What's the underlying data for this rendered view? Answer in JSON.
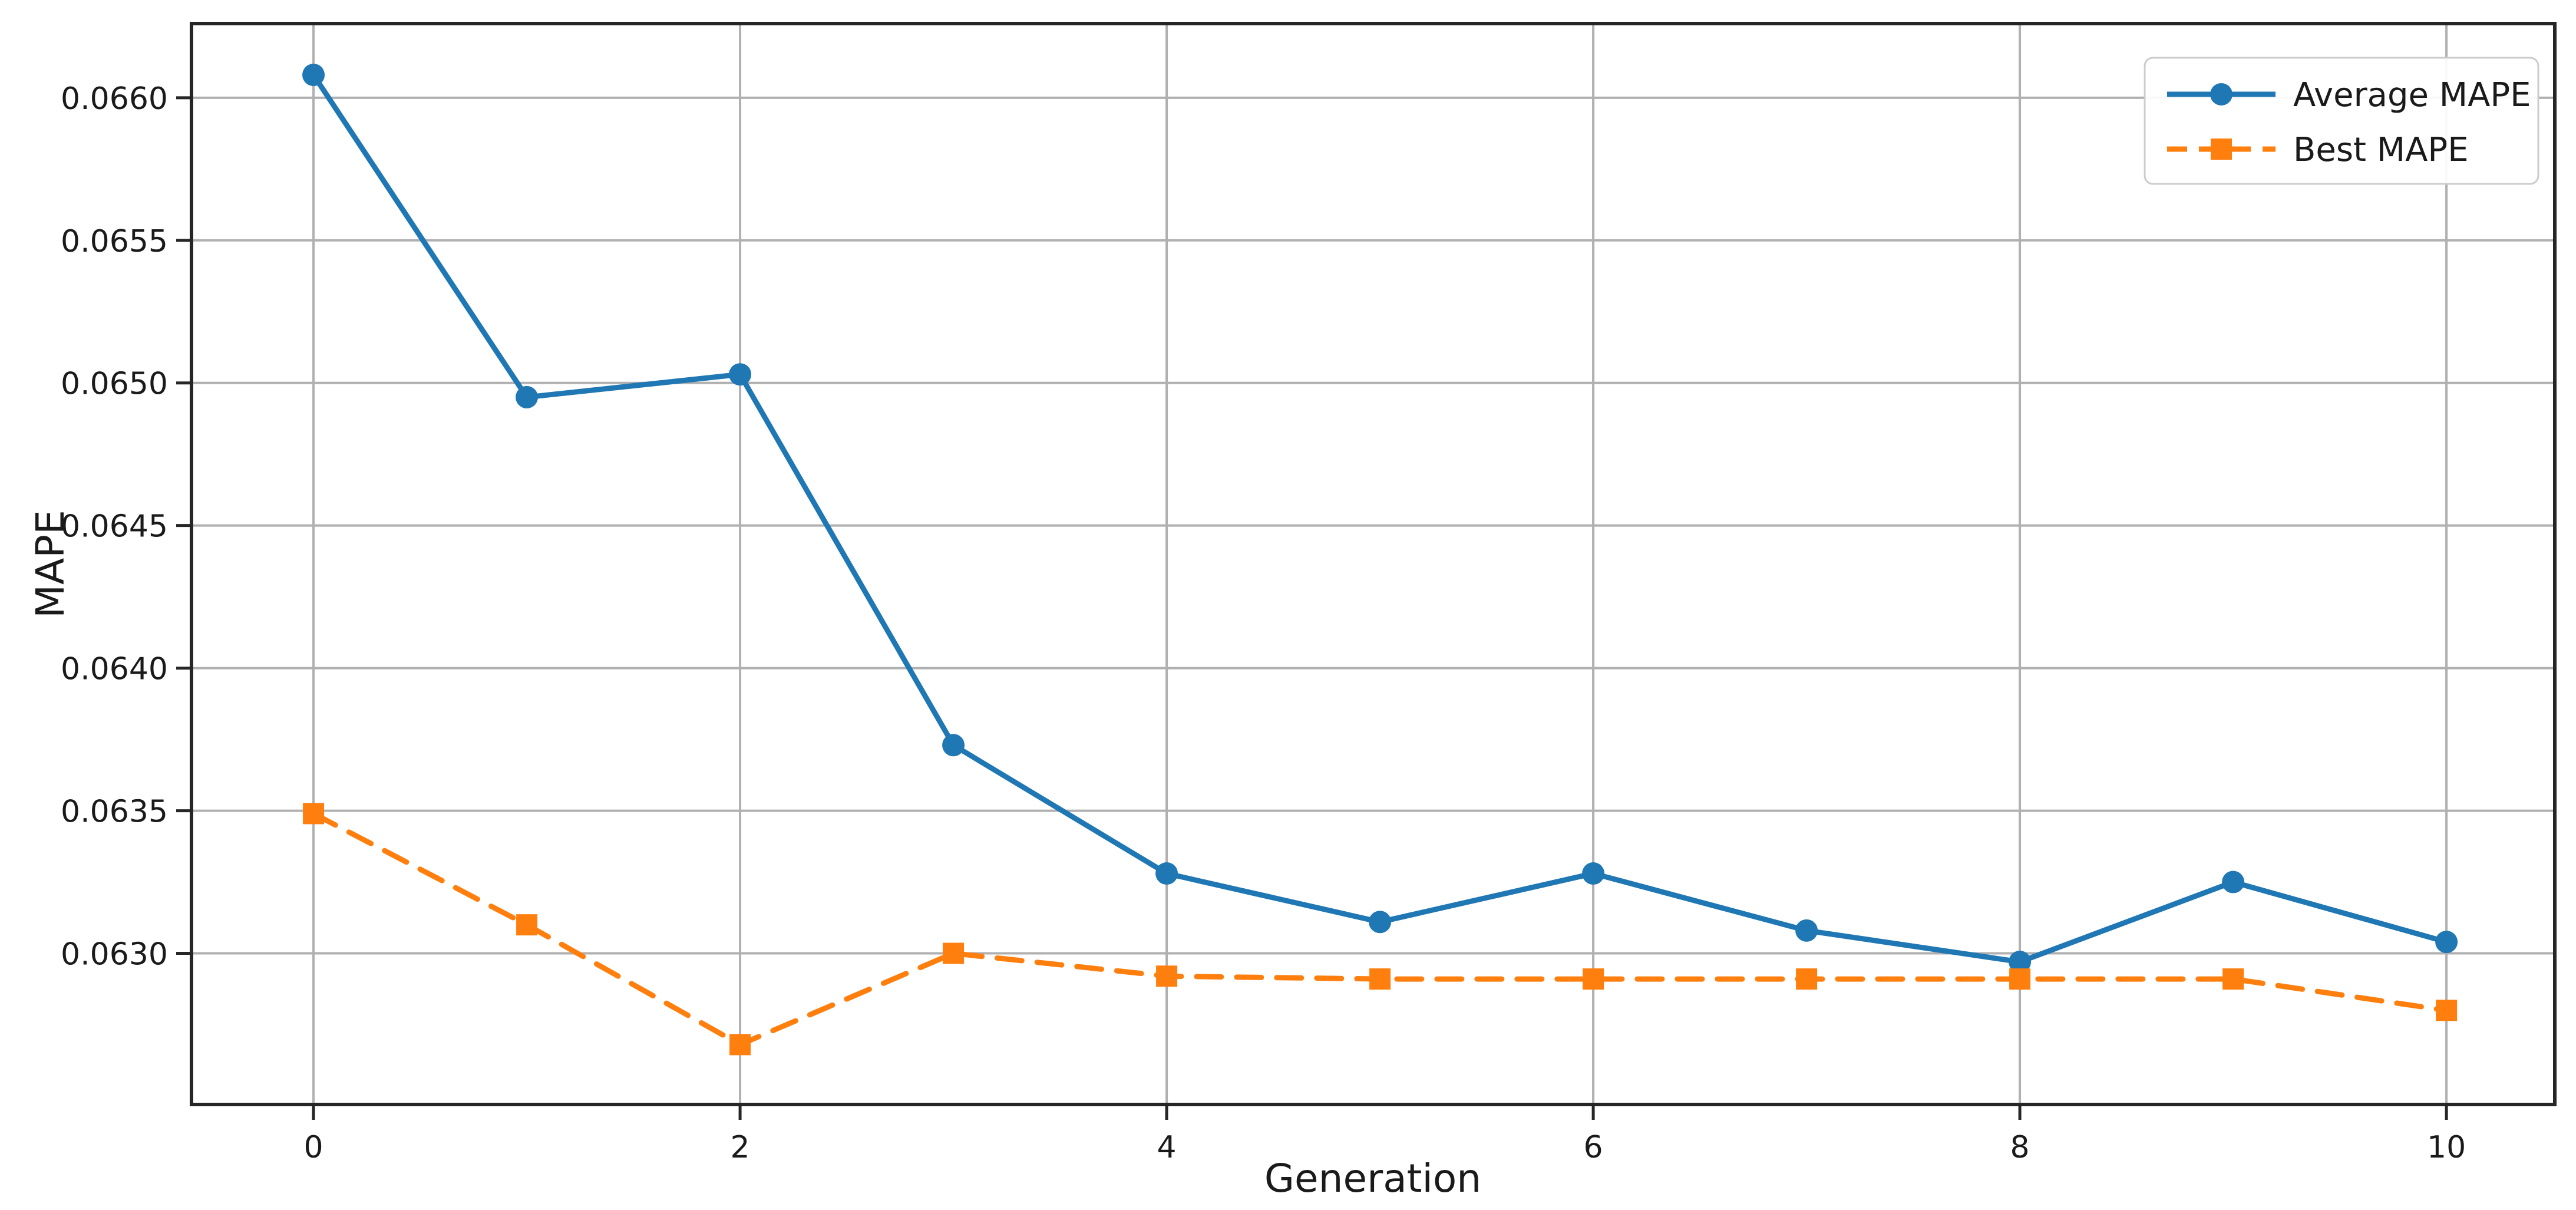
{
  "chart_data": {
    "type": "line",
    "title": "",
    "xlabel": "Generation",
    "ylabel": "MAPE",
    "x": [
      0,
      1,
      2,
      3,
      4,
      5,
      6,
      7,
      8,
      9,
      10
    ],
    "series": [
      {
        "name": "Average MAPE",
        "color": "#1f77b4",
        "linestyle": "solid",
        "marker": "circle",
        "values": [
          0.06608,
          0.06495,
          0.06503,
          0.06373,
          0.06328,
          0.06311,
          0.06328,
          0.06308,
          0.06297,
          0.06325,
          0.06304
        ]
      },
      {
        "name": "Best MAPE",
        "color": "#ff7f0e",
        "linestyle": "dashed",
        "marker": "square",
        "values": [
          0.06349,
          0.0631,
          0.06268,
          0.063,
          0.06292,
          0.06291,
          0.06291,
          0.06291,
          0.06291,
          0.06291,
          0.0628
        ]
      }
    ],
    "xlim": [
      -0.572,
      10.508
    ],
    "ylim": [
      0.06247,
      0.06626
    ],
    "xticks": {
      "values": [
        0,
        2,
        4,
        6,
        8,
        10
      ],
      "labels": [
        "0",
        "2",
        "4",
        "6",
        "8",
        "10"
      ]
    },
    "yticks": {
      "values": [
        0.063,
        0.0635,
        0.064,
        0.0645,
        0.065,
        0.0655,
        0.066
      ],
      "labels": [
        "0.0630",
        "0.0635",
        "0.0640",
        "0.0645",
        "0.0650",
        "0.0655",
        "0.0660"
      ]
    },
    "grid": true,
    "legend": {
      "position": "upper right",
      "entries": [
        "Average MAPE",
        "Best MAPE"
      ]
    },
    "colors": {
      "background": "#ffffff",
      "grid": "#b0b0b0",
      "spine": "#262626",
      "text": "#1a1a1a",
      "legend_border": "#cccccc",
      "legend_background": "#ffffff"
    }
  }
}
